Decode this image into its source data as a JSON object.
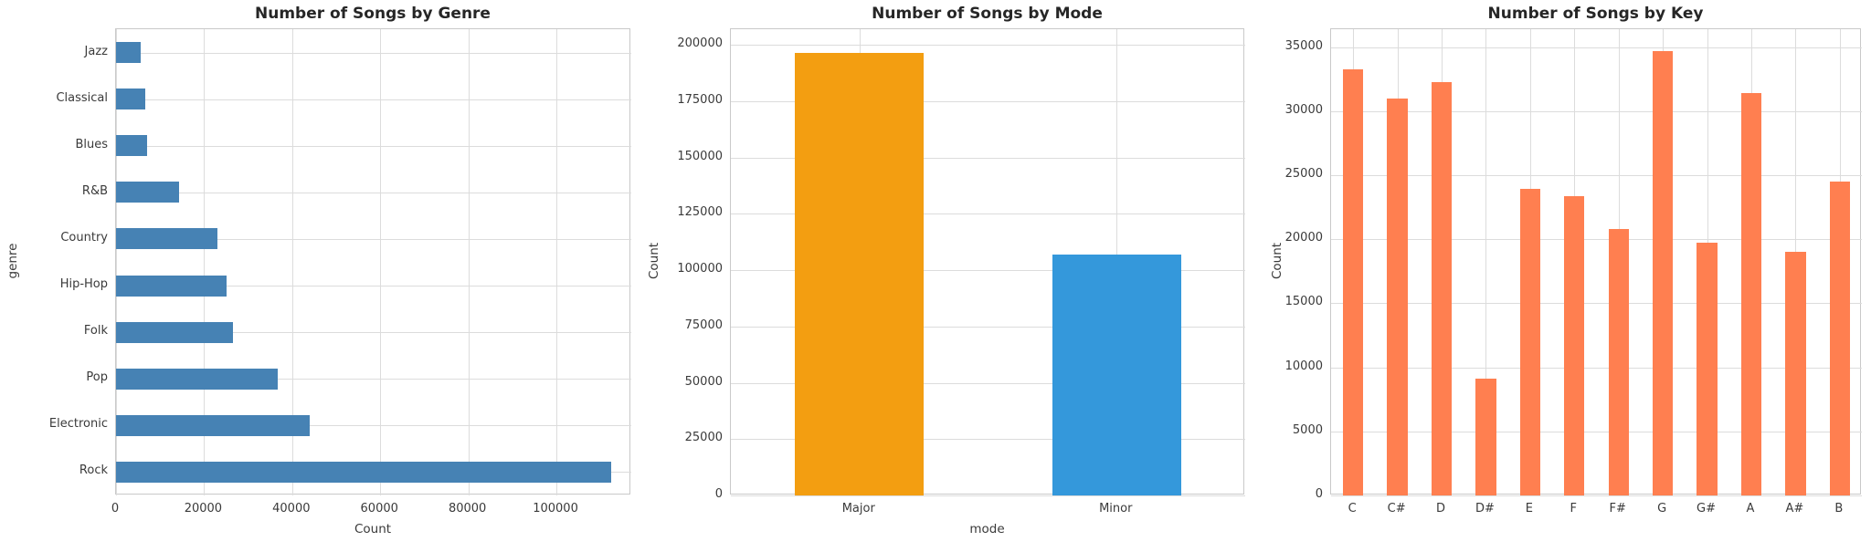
{
  "figure": {
    "background": "#ffffff",
    "text_color": "#262626",
    "tick_color": "#3a3a3a",
    "grid_color": "#dcdcdc",
    "spine_color": "#c9c9c9"
  },
  "chart_data": [
    {
      "type": "bar",
      "orientation": "horizontal",
      "title": "Number of Songs by Genre",
      "xlabel": "Count",
      "ylabel": "genre",
      "categories": [
        "Jazz",
        "Classical",
        "Blues",
        "R&B",
        "Country",
        "Hip-Hop",
        "Folk",
        "Pop",
        "Electronic",
        "Rock"
      ],
      "values": [
        5500,
        6600,
        7000,
        14300,
        23000,
        25200,
        26500,
        36800,
        44000,
        112500
      ],
      "bar_color": "#4682B4",
      "value_ticks": [
        0,
        20000,
        40000,
        60000,
        80000,
        100000
      ],
      "value_axis_max": 117000,
      "grid": true,
      "legend": null
    },
    {
      "type": "bar",
      "orientation": "vertical",
      "title": "Number of Songs by Mode",
      "xlabel": "mode",
      "ylabel": "Count",
      "categories": [
        "Major",
        "Minor"
      ],
      "values": [
        196500,
        106800
      ],
      "bar_colors": [
        "#F39E11",
        "#3498DB"
      ],
      "value_ticks": [
        0,
        25000,
        50000,
        75000,
        100000,
        125000,
        150000,
        175000,
        200000
      ],
      "value_axis_max": 207000,
      "grid": true,
      "legend": null
    },
    {
      "type": "bar",
      "orientation": "vertical",
      "title": "Number of Songs by Key",
      "xlabel": "",
      "ylabel": "Count",
      "categories": [
        "C",
        "C#",
        "D",
        "D#",
        "E",
        "F",
        "F#",
        "G",
        "G#",
        "A",
        "A#",
        "B"
      ],
      "values": [
        33300,
        31000,
        32300,
        9100,
        23900,
        23400,
        20800,
        34700,
        19700,
        31400,
        19000,
        24500
      ],
      "bar_color": "#FF7F50",
      "value_ticks": [
        0,
        5000,
        10000,
        15000,
        20000,
        25000,
        30000,
        35000
      ],
      "value_axis_max": 36400,
      "grid": true,
      "legend": null
    }
  ]
}
